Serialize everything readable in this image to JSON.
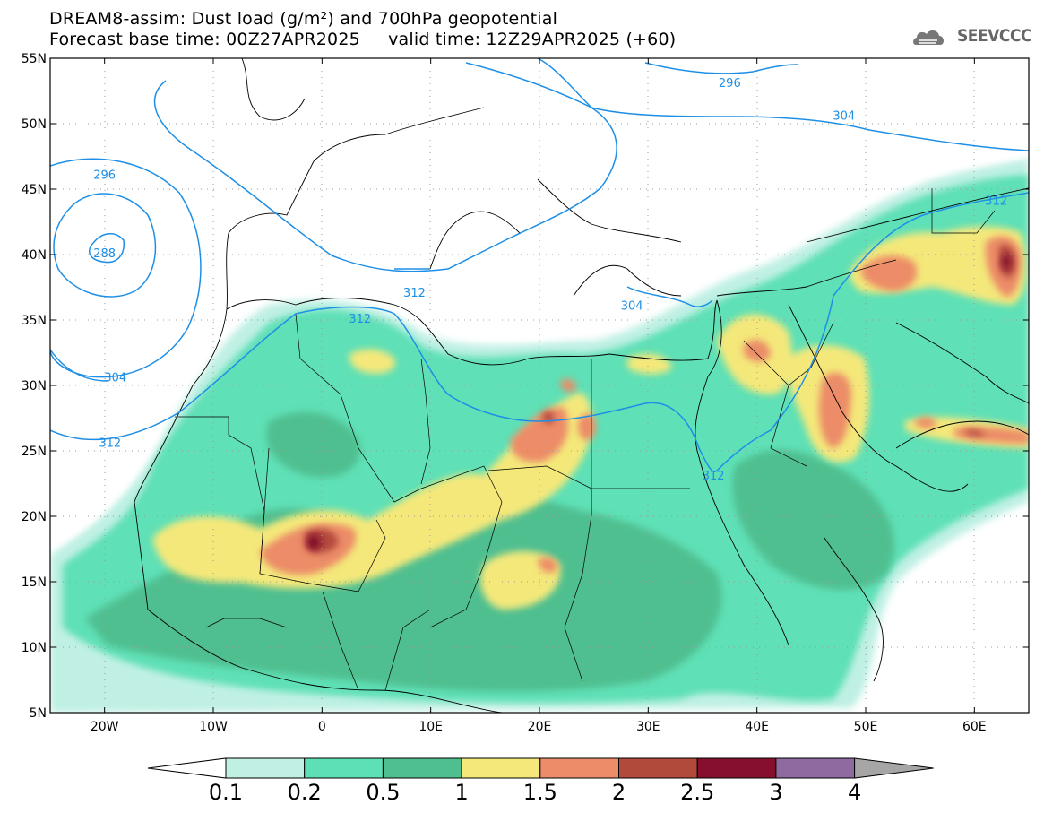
{
  "title": {
    "line1": "DREAM8-assim: Dust load (g/m²) and 700hPa geopotential",
    "line2": "Forecast base time: 00Z27APR2025     valid time: 12Z29APR2025 (+60)"
  },
  "logo": {
    "text": "SEEVCCC",
    "icon": "cloud-icon"
  },
  "map": {
    "lon_range": [
      -25,
      65
    ],
    "lat_range": [
      5,
      55
    ],
    "lat_labels": [
      "55N",
      "50N",
      "45N",
      "40N",
      "35N",
      "30N",
      "25N",
      "20N",
      "15N",
      "10N",
      "5N"
    ],
    "lon_labels": [
      "20W",
      "10W",
      "0",
      "10E",
      "20E",
      "30E",
      "40E",
      "50E",
      "60E"
    ],
    "grid": "dotted",
    "contour_labels": [
      {
        "text": "296",
        "lon": 37.5,
        "lat": 53.0
      },
      {
        "text": "304",
        "lon": 48.0,
        "lat": 50.5
      },
      {
        "text": "296",
        "lon": -20.0,
        "lat": 46.0
      },
      {
        "text": "288",
        "lon": -20.0,
        "lat": 40.0
      },
      {
        "text": "312",
        "lon": 8.5,
        "lat": 37.0
      },
      {
        "text": "312",
        "lon": 3.5,
        "lat": 35.0
      },
      {
        "text": "304",
        "lon": 28.5,
        "lat": 36.0
      },
      {
        "text": "312",
        "lon": 62.0,
        "lat": 44.0
      },
      {
        "text": "304",
        "lon": -19.0,
        "lat": 30.5
      },
      {
        "text": "312",
        "lon": -19.5,
        "lat": 25.5
      },
      {
        "text": "312",
        "lon": 36.0,
        "lat": 23.0
      }
    ]
  },
  "colorbar": {
    "labels": [
      "0.1",
      "0.2",
      "0.5",
      "1",
      "1.5",
      "2",
      "2.5",
      "3",
      "4"
    ],
    "colors": [
      "#c0f0e4",
      "#5ee0b6",
      "#4fbf90",
      "#f4e87a",
      "#ec8c68",
      "#b24a3c",
      "#850f2c",
      "#8e6aa0",
      "#a6a6a6"
    ]
  },
  "colors": {
    "contour": "#1e8fe6",
    "coast": "#000000"
  }
}
